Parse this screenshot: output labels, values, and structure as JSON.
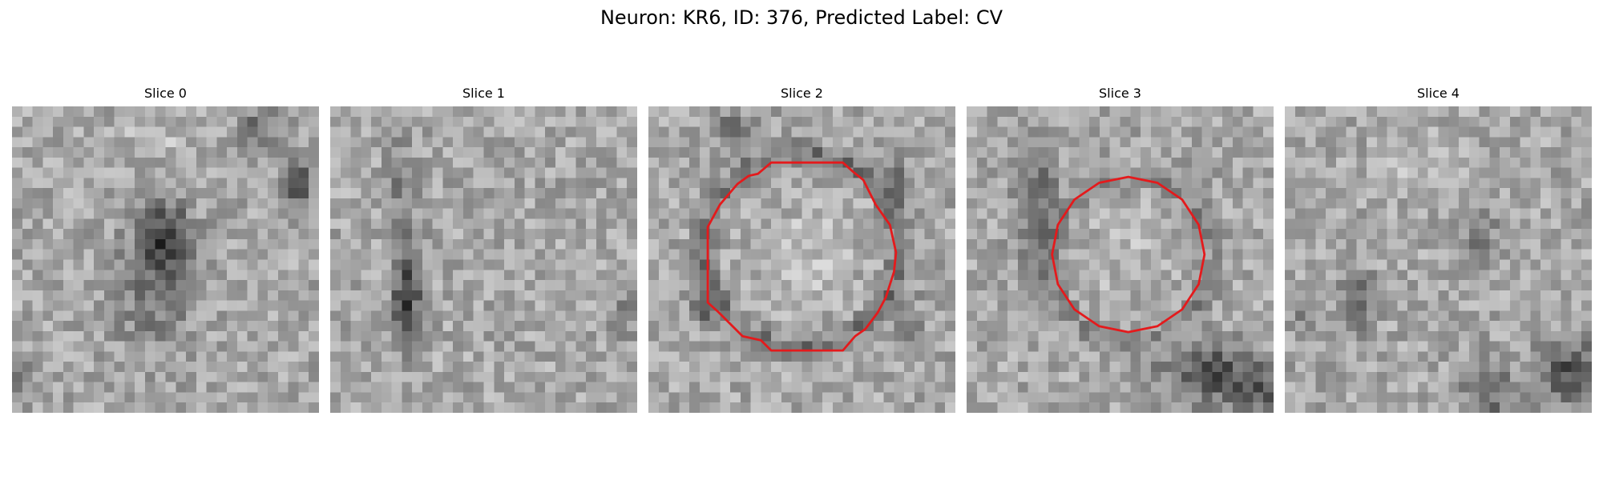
{
  "figure": {
    "title": "Neuron: KR6, ID: 376, Predicted Label: CV"
  },
  "panels": [
    {
      "title": "Slice 0",
      "has_contour": false
    },
    {
      "title": "Slice 1",
      "has_contour": false
    },
    {
      "title": "Slice 2",
      "has_contour": true
    },
    {
      "title": "Slice 3",
      "has_contour": true
    },
    {
      "title": "Slice 4",
      "has_contour": false
    }
  ],
  "colors": {
    "contour": "#e41a1c",
    "colormap": "grayscale"
  }
}
